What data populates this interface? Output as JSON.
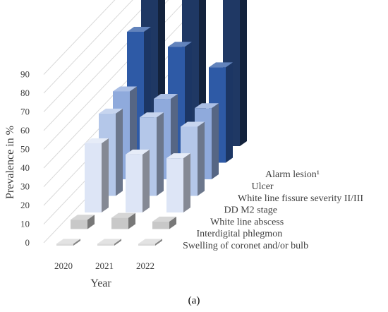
{
  "chart_data": {
    "type": "bar",
    "style": "3d-grouped",
    "categories": [
      "2020",
      "2021",
      "2022"
    ],
    "series": [
      {
        "name": "Swelling of coronet and/or bulb",
        "values": [
          1,
          1,
          1
        ],
        "color": "#d9d9d9"
      },
      {
        "name": "Interdigital phlegmon",
        "values": [
          5,
          6,
          4
        ],
        "color": "#c8c8c8"
      },
      {
        "name": "White line abscess",
        "values": [
          37,
          31,
          29
        ],
        "color": "#dde5f6"
      },
      {
        "name": "DD M2 stage",
        "values": [
          44,
          42,
          37
        ],
        "color": "#b4c7e9"
      },
      {
        "name": "White line fissure severity II/III",
        "values": [
          47,
          43,
          38
        ],
        "color": "#8faadc"
      },
      {
        "name": "Ulcer",
        "values": [
          70,
          62,
          51
        ],
        "color": "#2e5aa6"
      },
      {
        "name": "Alarm lesion¹",
        "values": [
          83,
          83,
          82
        ],
        "color": "#1f3864"
      }
    ],
    "xlabel": "Year",
    "ylabel": "Prevalence in %",
    "yticks": [
      "0",
      "10",
      "20",
      "30",
      "40",
      "50",
      "60",
      "70",
      "80",
      "90"
    ],
    "ylim": [
      0,
      90
    ],
    "grid": true
  },
  "caption": "(a)"
}
